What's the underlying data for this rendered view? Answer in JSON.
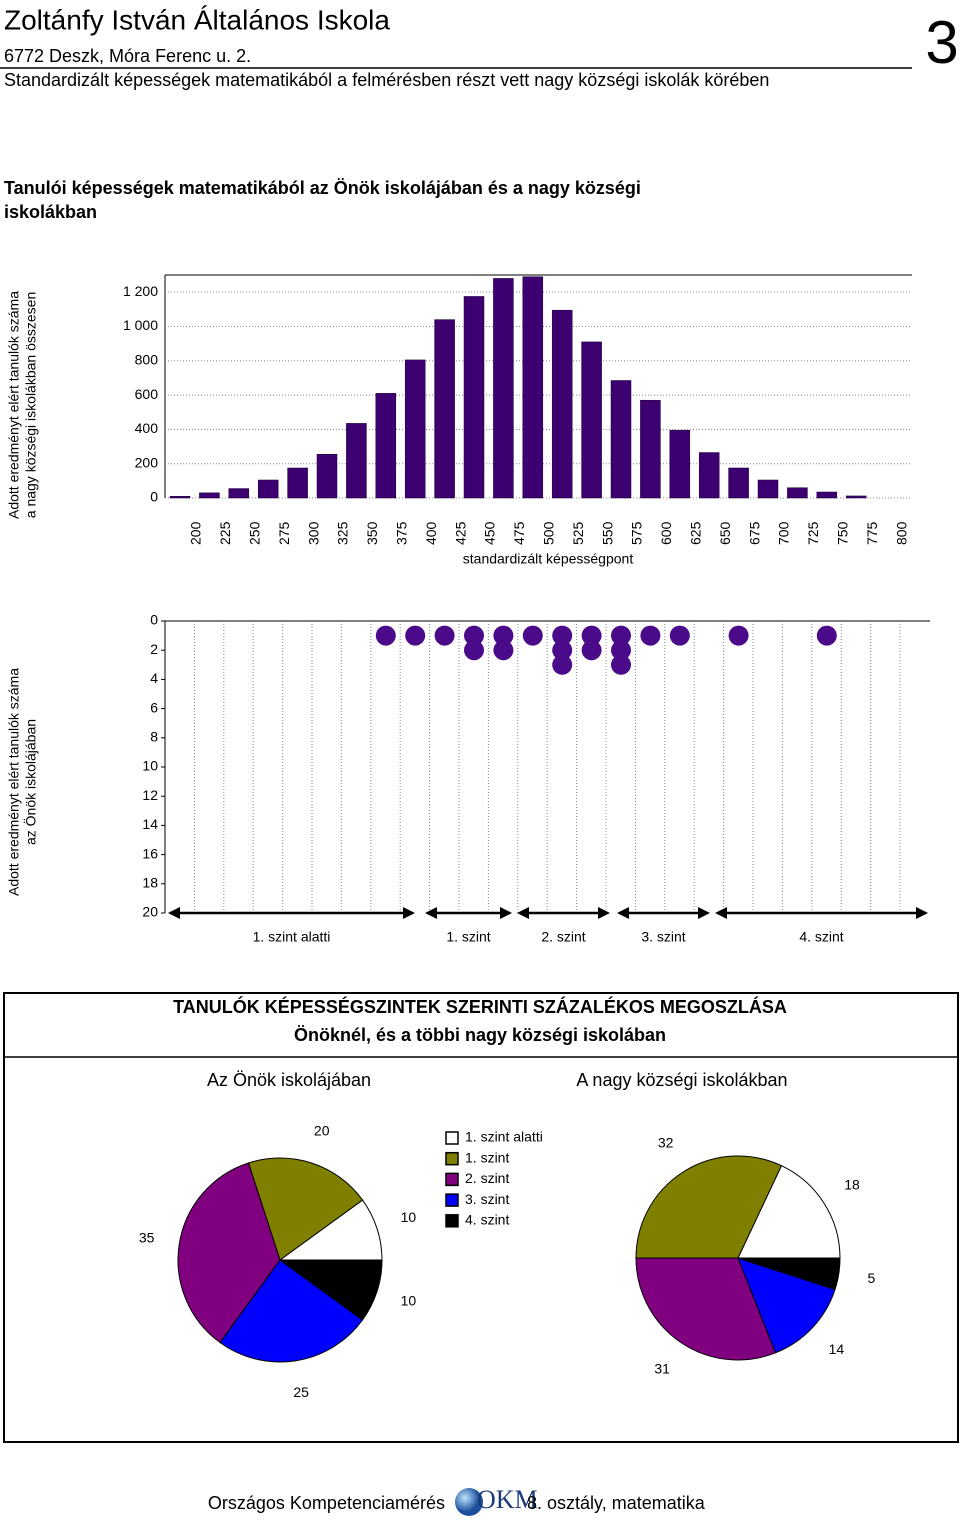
{
  "header": {
    "title": "Zoltánfy István Általános Iskola",
    "address": "6772 Deszk, Móra Ferenc u. 2.",
    "subtitle": "Standardizált képességek matematikából a felmérésben részt vett nagy községi iskolák körében",
    "page_number": "3"
  },
  "section_title": "Tanulói képességek matematikából az Önök iskolájában és a nagy községi iskolákban",
  "chart_data": [
    {
      "type": "bar",
      "ylabel": [
        "Adott eredményt elért tanulók száma",
        "a nagy községi iskolákban összesen"
      ],
      "xlabel": "standardizált képességpont",
      "categories": [
        200,
        225,
        250,
        275,
        300,
        325,
        350,
        375,
        400,
        425,
        450,
        475,
        500,
        525,
        550,
        575,
        600,
        625,
        650,
        675,
        700,
        725,
        750,
        775,
        800
      ],
      "values": [
        10,
        30,
        55,
        105,
        175,
        255,
        435,
        610,
        805,
        1040,
        1175,
        1280,
        1290,
        1095,
        910,
        685,
        570,
        395,
        265,
        175,
        105,
        60,
        35,
        12,
        0
      ],
      "color": "#3d0070",
      "ylim": [
        0,
        1300
      ],
      "yticks": [
        0,
        200,
        400,
        600,
        800,
        {
          "value": 1000,
          "label": "1 000"
        },
        {
          "value": 1200,
          "label": "1 200"
        }
      ],
      "grid": true
    },
    {
      "type": "dot",
      "ylabel": [
        "Adott eredményt elért tanulók száma",
        "az Önök iskolájában"
      ],
      "values": [
        0,
        0,
        0,
        0,
        0,
        0,
        0,
        1,
        1,
        1,
        2,
        2,
        1,
        3,
        2,
        3,
        1,
        1,
        0,
        1,
        0,
        0,
        1,
        0,
        0
      ],
      "color": "#4a0a8a",
      "ylim": [
        0,
        20
      ],
      "yticks": [
        0,
        2,
        4,
        6,
        8,
        10,
        12,
        14,
        16,
        18,
        20
      ],
      "y_inverted": true,
      "grid": true,
      "levels": [
        "1. szint alatti",
        "1. szint",
        "2. szint",
        "3. szint",
        "4. szint"
      ]
    },
    {
      "type": "pie",
      "title": "Az Önök iskolájában",
      "categories": [
        "1. szint alatti",
        "1. szint",
        "2. szint",
        "3. szint",
        "4. szint"
      ],
      "values": [
        10,
        20,
        35,
        25,
        10
      ],
      "colors": [
        "#ffffff",
        "#808000",
        "#800080",
        "#0000ff",
        "#000000"
      ],
      "legend": true
    },
    {
      "type": "pie",
      "title": "A nagy községi iskolákban",
      "values": [
        18,
        32,
        31,
        14,
        5
      ],
      "colors": [
        "#ffffff",
        "#808000",
        "#800080",
        "#0000ff",
        "#000000"
      ]
    }
  ],
  "pie_section": {
    "title": "TANULÓK KÉPESSÉGSZINTEK SZERINTI SZÁZALÉKOS MEGOSZLÁSA",
    "subtitle": "Önöknél, és a többi nagy községi iskolában"
  },
  "footer": {
    "left": "Országos Kompetenciamérés",
    "logo": "OKM",
    "right": "8. osztály, matematika"
  }
}
